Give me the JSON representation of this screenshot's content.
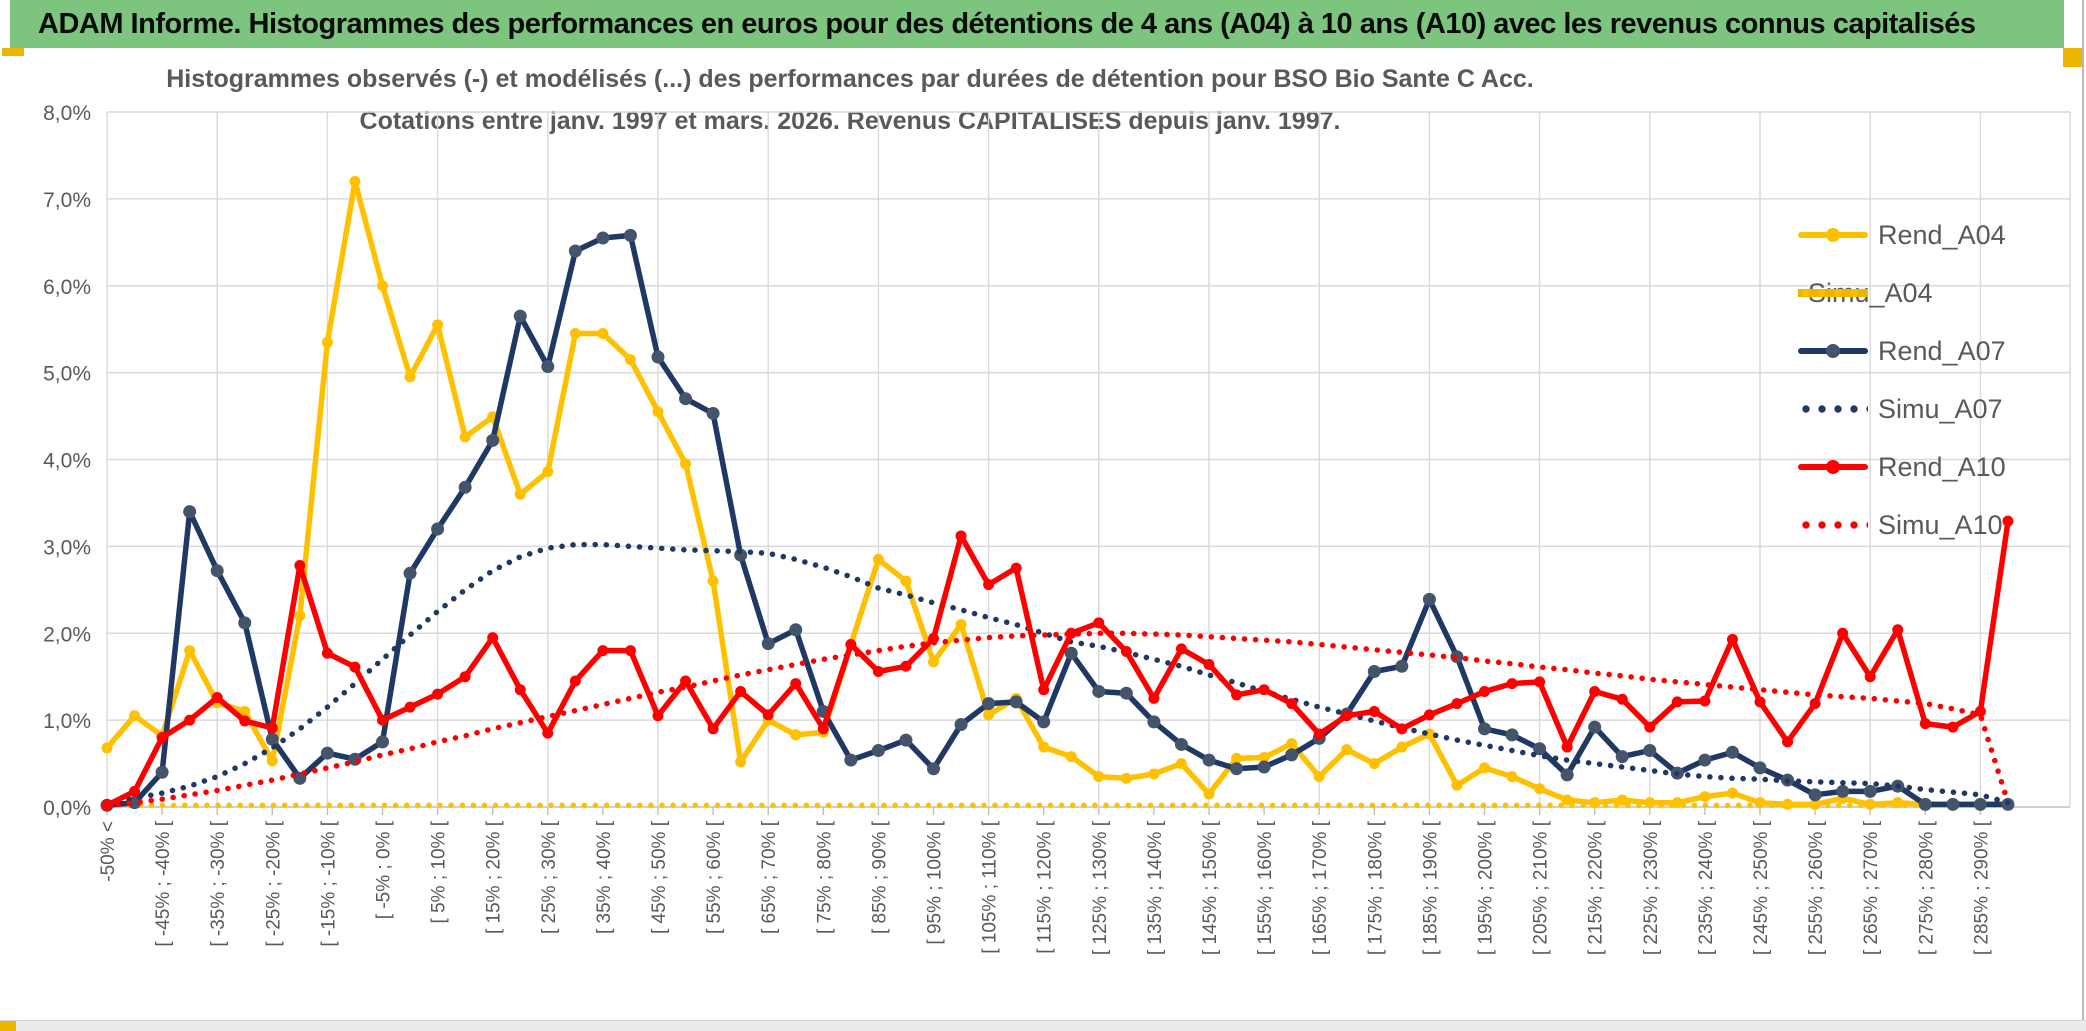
{
  "header": {
    "title": "ADAM Informe. Histogrammes des performances en euros pour des détentions de 4 ans (A04) à 10 ans (A10) avec les revenus connus capitalisés"
  },
  "colors": {
    "header_green": "#7dc57e",
    "accent_gold": "#edb500",
    "series_gold": "#ffc000",
    "series_navy": "#1f3864",
    "navy_marker": "#44546a",
    "series_red": "#ff0000",
    "text_gray": "#595959",
    "gridline": "#d9d9d9",
    "axis_line": "#bfbfbf"
  },
  "chart_data": {
    "type": "line",
    "title_line1": "Histogrammes observés (-) et modélisés (...) des performances par durées de détention pour BSO Bio Sante C Acc.",
    "title_line2": "Cotations entre janv. 1997 et mars. 2026. Revenus CAPITALISES depuis janv. 1997.",
    "grid": true,
    "legend_position": "right-overlay",
    "y_axis": {
      "min": 0,
      "max": 8,
      "step": 1,
      "unit": "%",
      "tick_labels": [
        "0,0%",
        "1,0%",
        "2,0%",
        "3,0%",
        "4,0%",
        "5,0%",
        "6,0%",
        "7,0%",
        "8,0%"
      ]
    },
    "x_axis": {
      "num_points": 70,
      "bin_width_pct": 5,
      "labels_on_every_other_point": true,
      "labels": [
        "-50% <",
        "[ -45% ; -40% [",
        "[ -35% ; -30% [",
        "[ -25% ; -20% [",
        "[ -15% ; -10% [",
        "[ -5% ; 0% [",
        "[ 5% ; 10% [",
        "[ 15% ; 20% [",
        "[ 25% ; 30% [",
        "[ 35% ; 40% [",
        "[ 45% ; 50% [",
        "[ 55% ; 60% [",
        "[ 65% ; 70% [",
        "[ 75% ; 80% [",
        "[ 85% ; 90% [",
        "[ 95% ; 100% [",
        "[ 105% ; 110% [",
        "[ 115% ; 120% [",
        "[ 125% ; 130% [",
        "[ 135% ; 140% [",
        "[ 145% ; 150% [",
        "[ 155% ; 160% [",
        "[ 165% ; 170% [",
        "[ 175% ; 180% [",
        "[ 185% ; 190% [",
        "[ 195% ; 200% [",
        "[ 205% ; 210% [",
        "[ 215% ; 220% [",
        "[ 225% ; 230% [",
        "[ 235% ; 240% [",
        "[ 245% ; 250% [",
        "[ 255% ; 260% [",
        "[ 265% ; 270% [",
        "[ 275% ; 280% [",
        "[ 285% ; 290% ["
      ]
    },
    "series": [
      {
        "name": "Rend_A04",
        "style": "solid",
        "color": "#ffc000",
        "marker_color": "#ffc000",
        "marker_r": 5.5,
        "values": [
          0.68,
          1.05,
          0.82,
          1.8,
          1.2,
          1.1,
          0.53,
          2.2,
          5.35,
          7.2,
          6.0,
          4.95,
          5.55,
          4.26,
          4.49,
          3.6,
          3.86,
          5.45,
          5.45,
          5.15,
          4.55,
          3.95,
          2.6,
          0.52,
          1.0,
          0.83,
          0.86,
          1.87,
          2.85,
          2.6,
          1.67,
          2.1,
          1.06,
          1.25,
          0.69,
          0.58,
          0.35,
          0.33,
          0.38,
          0.5,
          0.15,
          0.56,
          0.57,
          0.73,
          0.35,
          0.66,
          0.5,
          0.69,
          0.84,
          0.25,
          0.45,
          0.35,
          0.21,
          0.08,
          0.05,
          0.08,
          0.05,
          0.05,
          0.12,
          0.16,
          0.05,
          0.03,
          0.03,
          0.1,
          0.03,
          0.05,
          0.03,
          0.03,
          0.03,
          0.03
        ]
      },
      {
        "name": "Simu_A04",
        "style": "dotted",
        "color": "#ffc000",
        "values": [
          0.02,
          0.02,
          0.02,
          0.02,
          0.02,
          0.02,
          0.02,
          0.02,
          0.02,
          0.02,
          0.02,
          0.02,
          0.02,
          0.02,
          0.02,
          0.02,
          0.02,
          0.02,
          0.02,
          0.02,
          0.02,
          0.02,
          0.02,
          0.02,
          0.02,
          0.02,
          0.02,
          0.02,
          0.02,
          0.02,
          0.02,
          0.02,
          0.02,
          0.02,
          0.02,
          0.02,
          0.02,
          0.02,
          0.02,
          0.02,
          0.02,
          0.02,
          0.02,
          0.02,
          0.02,
          0.02,
          0.02,
          0.02,
          0.02,
          0.02,
          0.02,
          0.02,
          0.02,
          0.02,
          0.02,
          0.02,
          0.02,
          0.02,
          0.02,
          0.02,
          0.02,
          0.02,
          0.02,
          0.02,
          0.02,
          0.02,
          0.02,
          0.02,
          0.02,
          0.02
        ]
      },
      {
        "name": "Rend_A07",
        "style": "solid",
        "color": "#1f3864",
        "marker_color": "#44546a",
        "marker_r": 6.5,
        "values": [
          0.02,
          0.05,
          0.4,
          3.4,
          2.72,
          2.12,
          0.78,
          0.33,
          0.62,
          0.55,
          0.75,
          2.69,
          3.2,
          3.68,
          4.22,
          5.65,
          5.07,
          6.4,
          6.55,
          6.58,
          5.18,
          4.7,
          4.53,
          2.9,
          1.88,
          2.04,
          1.1,
          0.54,
          0.65,
          0.77,
          0.44,
          0.95,
          1.19,
          1.21,
          0.98,
          1.77,
          1.33,
          1.31,
          0.98,
          0.72,
          0.54,
          0.44,
          0.46,
          0.6,
          0.79,
          1.07,
          1.56,
          1.62,
          2.39,
          1.73,
          0.9,
          0.83,
          0.67,
          0.37,
          0.92,
          0.58,
          0.65,
          0.39,
          0.54,
          0.63,
          0.45,
          0.31,
          0.14,
          0.18,
          0.18,
          0.24,
          0.03,
          0.03,
          0.03,
          0.03
        ]
      },
      {
        "name": "Simu_A07",
        "style": "dotted",
        "color": "#1f3864",
        "values": [
          0.05,
          0.1,
          0.16,
          0.24,
          0.35,
          0.5,
          0.68,
          0.9,
          1.15,
          1.42,
          1.7,
          1.98,
          2.25,
          2.5,
          2.72,
          2.88,
          2.98,
          3.02,
          3.02,
          3.0,
          2.98,
          2.96,
          2.95,
          2.94,
          2.92,
          2.85,
          2.76,
          2.65,
          2.52,
          2.44,
          2.35,
          2.27,
          2.18,
          2.1,
          2.0,
          1.9,
          1.85,
          1.78,
          1.7,
          1.62,
          1.52,
          1.43,
          1.33,
          1.24,
          1.15,
          1.07,
          0.99,
          0.91,
          0.84,
          0.77,
          0.71,
          0.65,
          0.59,
          0.54,
          0.5,
          0.46,
          0.42,
          0.38,
          0.35,
          0.33,
          0.32,
          0.3,
          0.29,
          0.28,
          0.27,
          0.24,
          0.2,
          0.17,
          0.14,
          0.05
        ]
      },
      {
        "name": "Rend_A10",
        "style": "solid",
        "color": "#ff0000",
        "marker_color": "#ff0000",
        "marker_r": 5.5,
        "values": [
          0.02,
          0.18,
          0.8,
          1.0,
          1.26,
          0.99,
          0.91,
          2.78,
          1.77,
          1.61,
          1.0,
          1.15,
          1.3,
          1.5,
          1.95,
          1.35,
          0.85,
          1.45,
          1.8,
          1.8,
          1.05,
          1.45,
          0.9,
          1.33,
          1.06,
          1.42,
          0.9,
          1.87,
          1.56,
          1.62,
          1.94,
          3.12,
          2.56,
          2.75,
          1.35,
          2.0,
          2.12,
          1.79,
          1.25,
          1.82,
          1.64,
          1.29,
          1.35,
          1.19,
          0.84,
          1.05,
          1.1,
          0.9,
          1.06,
          1.19,
          1.33,
          1.42,
          1.44,
          0.69,
          1.33,
          1.24,
          0.92,
          1.21,
          1.22,
          1.93,
          1.21,
          0.75,
          1.19,
          2.0,
          1.5,
          2.04,
          0.96,
          0.92,
          1.1,
          3.29
        ]
      },
      {
        "name": "Simu_A10",
        "style": "dotted",
        "color": "#ff0000",
        "values": [
          0.02,
          0.05,
          0.09,
          0.14,
          0.19,
          0.25,
          0.31,
          0.38,
          0.45,
          0.52,
          0.6,
          0.67,
          0.75,
          0.82,
          0.9,
          0.97,
          1.04,
          1.11,
          1.18,
          1.25,
          1.32,
          1.38,
          1.45,
          1.52,
          1.58,
          1.64,
          1.7,
          1.75,
          1.8,
          1.85,
          1.89,
          1.92,
          1.95,
          1.97,
          1.98,
          1.99,
          2.0,
          2.0,
          1.99,
          1.98,
          1.96,
          1.94,
          1.92,
          1.9,
          1.87,
          1.84,
          1.81,
          1.78,
          1.75,
          1.72,
          1.68,
          1.65,
          1.61,
          1.58,
          1.54,
          1.51,
          1.47,
          1.44,
          1.41,
          1.38,
          1.35,
          1.32,
          1.29,
          1.27,
          1.25,
          1.22,
          1.19,
          1.13,
          1.06,
          0.05
        ]
      }
    ]
  }
}
